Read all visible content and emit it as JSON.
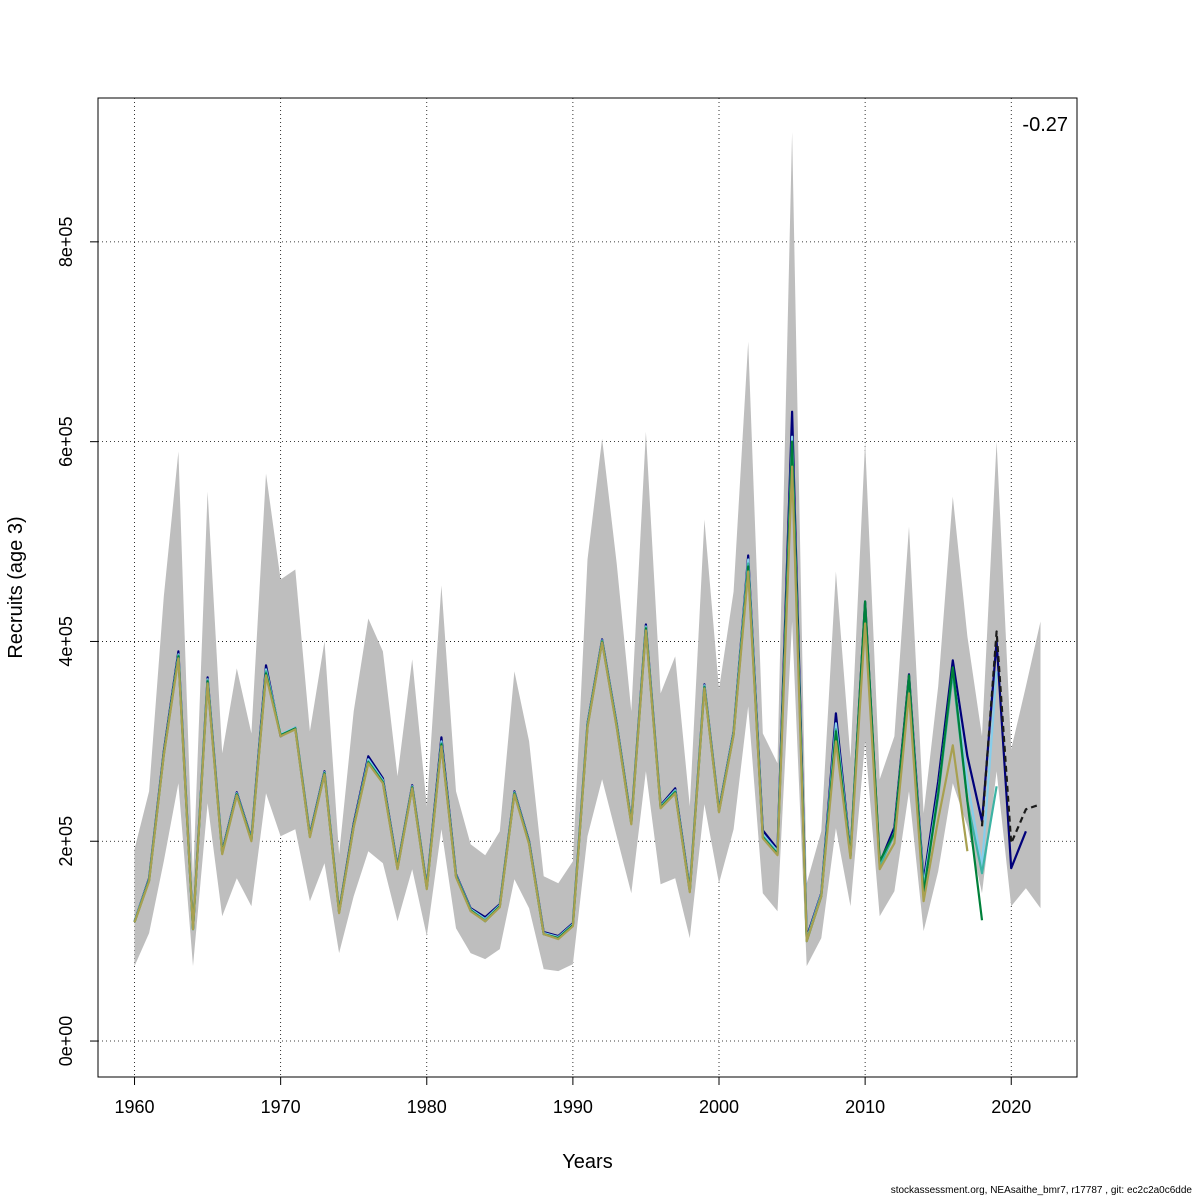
{
  "chart_data": {
    "type": "line",
    "xlabel": "Years",
    "ylabel": "Recruits (age 3)",
    "xlim": [
      1957.5,
      2024.5
    ],
    "ylim": [
      -36000,
      944000
    ],
    "xticks": [
      1960,
      1970,
      1980,
      1990,
      2000,
      2010,
      2020
    ],
    "xtick_labels": [
      "1960",
      "1970",
      "1980",
      "1990",
      "2000",
      "2010",
      "2020"
    ],
    "yticks": [
      0,
      200000,
      400000,
      600000,
      800000
    ],
    "ytick_labels": [
      "0e+00",
      "2e+05",
      "4e+05",
      "6e+05",
      "8e+05"
    ],
    "grid": true,
    "annotation": "-0.27",
    "confidence_band": {
      "years": [
        1960,
        1961,
        1962,
        1963,
        1964,
        1965,
        1966,
        1967,
        1968,
        1969,
        1970,
        1971,
        1972,
        1973,
        1974,
        1975,
        1976,
        1977,
        1978,
        1979,
        1980,
        1981,
        1982,
        1983,
        1984,
        1985,
        1986,
        1987,
        1988,
        1989,
        1990,
        1991,
        1992,
        1993,
        1994,
        1995,
        1996,
        1997,
        1998,
        1999,
        2000,
        2001,
        2002,
        2003,
        2004,
        2005,
        2006,
        2007,
        2008,
        2009,
        2010,
        2011,
        2012,
        2013,
        2014,
        2015,
        2016,
        2017,
        2018,
        2019,
        2020,
        2021,
        2022
      ],
      "lower": [
        75000,
        108000,
        180000,
        258000,
        75000,
        238000,
        125000,
        163000,
        135000,
        248000,
        205000,
        212000,
        140000,
        178000,
        88000,
        145000,
        190000,
        178000,
        120000,
        172000,
        105000,
        212000,
        113000,
        88000,
        82000,
        92000,
        162000,
        133000,
        72000,
        70000,
        77000,
        205000,
        262000,
        205000,
        148000,
        270000,
        157000,
        163000,
        103000,
        237000,
        158000,
        212000,
        335000,
        148000,
        130000,
        420000,
        75000,
        103000,
        213000,
        135000,
        300000,
        125000,
        150000,
        250000,
        110000,
        170000,
        258000,
        215000,
        148000,
        270000,
        135000,
        153000,
        133000
      ],
      "upper": [
        192000,
        250000,
        445000,
        590000,
        160000,
        550000,
        288000,
        373000,
        308000,
        568000,
        462000,
        472000,
        310000,
        400000,
        187000,
        330000,
        423000,
        390000,
        265000,
        382000,
        235000,
        456000,
        250000,
        197000,
        186000,
        210000,
        370000,
        300000,
        165000,
        158000,
        180000,
        482000,
        603000,
        478000,
        330000,
        610000,
        348000,
        385000,
        235000,
        522000,
        352000,
        450000,
        700000,
        308000,
        278000,
        910000,
        158000,
        210000,
        470000,
        283000,
        600000,
        262000,
        305000,
        515000,
        228000,
        355000,
        545000,
        405000,
        305000,
        600000,
        292000,
        355000,
        420000
      ]
    },
    "series": [
      {
        "color": "#00007a",
        "x": [
          1960,
          1961,
          1962,
          1963,
          1964,
          1965,
          1966,
          1967,
          1968,
          1969,
          1970,
          1971,
          1972,
          1973,
          1974,
          1975,
          1976,
          1977,
          1978,
          1979,
          1980,
          1981,
          1982,
          1983,
          1984,
          1985,
          1986,
          1987,
          1988,
          1989,
          1990,
          1991,
          1992,
          1993,
          1994,
          1995,
          1996,
          1997,
          1998,
          1999,
          2000,
          2001,
          2002,
          2003,
          2004,
          2005,
          2006,
          2007,
          2008,
          2009,
          2010,
          2011,
          2012,
          2013,
          2014,
          2015,
          2016,
          2017,
          2018,
          2019,
          2020,
          2021
        ],
        "y": [
          120000,
          163000,
          290000,
          390000,
          113000,
          364000,
          190000,
          249000,
          203000,
          376000,
          305000,
          314000,
          207000,
          270000,
          130000,
          218000,
          285000,
          263000,
          175000,
          256000,
          155000,
          304000,
          167000,
          133000,
          124000,
          137000,
          250000,
          200000,
          109000,
          105000,
          118000,
          318000,
          402000,
          318000,
          220000,
          417000,
          236000,
          253000,
          152000,
          357000,
          232000,
          310000,
          486000,
          211000,
          192000,
          630000,
          104000,
          148000,
          328000,
          188000,
          440000,
          178000,
          214000,
          367000,
          160000,
          260000,
          381000,
          285000,
          220000,
          400000,
          173000,
          210000
        ]
      },
      {
        "color": "#87ceeb",
        "x": [
          1960,
          1961,
          1962,
          1963,
          1964,
          1965,
          1966,
          1967,
          1968,
          1969,
          1970,
          1971,
          1972,
          1973,
          1974,
          1975,
          1976,
          1977,
          1978,
          1979,
          1980,
          1981,
          1982,
          1983,
          1984,
          1985,
          1986,
          1987,
          1988,
          1989,
          1990,
          1991,
          1992,
          1993,
          1994,
          1995,
          1996,
          1997,
          1998,
          1999,
          2000,
          2001,
          2002,
          2003,
          2004,
          2005,
          2006,
          2007,
          2008,
          2009,
          2010,
          2011,
          2012,
          2013,
          2014,
          2015,
          2016,
          2017,
          2018,
          2019
        ],
        "y": [
          120000,
          162000,
          288000,
          387000,
          112000,
          362000,
          189000,
          248000,
          202000,
          372000,
          307000,
          314000,
          206000,
          269000,
          129000,
          216000,
          282000,
          261000,
          174000,
          255000,
          154000,
          300000,
          166000,
          132000,
          122000,
          136000,
          249000,
          199000,
          108000,
          104000,
          117000,
          317000,
          401000,
          317000,
          219000,
          415000,
          235000,
          251000,
          151000,
          356000,
          231000,
          309000,
          482000,
          207000,
          190000,
          605000,
          102000,
          147000,
          318000,
          187000,
          436000,
          176000,
          209000,
          364000,
          155000,
          250000,
          370000,
          260000,
          175000,
          370000
        ]
      },
      {
        "color": "#3cb3a4",
        "x": [
          1960,
          1961,
          1962,
          1963,
          1964,
          1965,
          1966,
          1967,
          1968,
          1969,
          1970,
          1971,
          1972,
          1973,
          1974,
          1975,
          1976,
          1977,
          1978,
          1979,
          1980,
          1981,
          1982,
          1983,
          1984,
          1985,
          1986,
          1987,
          1988,
          1989,
          1990,
          1991,
          1992,
          1993,
          1994,
          1995,
          1996,
          1997,
          1998,
          1999,
          2000,
          2001,
          2002,
          2003,
          2004,
          2005,
          2006,
          2007,
          2008,
          2009,
          2010,
          2011,
          2012,
          2013,
          2014,
          2015,
          2016,
          2017,
          2018,
          2019
        ],
        "y": [
          119000,
          161000,
          287000,
          386000,
          112000,
          361000,
          188000,
          247000,
          201000,
          370000,
          306000,
          313000,
          205000,
          268000,
          129000,
          215000,
          280000,
          260000,
          173000,
          254000,
          153000,
          298000,
          165000,
          131000,
          121000,
          135000,
          248000,
          198000,
          107000,
          103000,
          116000,
          316000,
          400000,
          316000,
          218000,
          414000,
          234000,
          250000,
          150000,
          355000,
          230000,
          308000,
          478000,
          205000,
          188000,
          590000,
          101000,
          146000,
          312000,
          186000,
          432000,
          175000,
          207000,
          362000,
          150000,
          245000,
          368000,
          240000,
          168000,
          255000
        ]
      },
      {
        "color": "#00803a",
        "x": [
          1960,
          1961,
          1962,
          1963,
          1964,
          1965,
          1966,
          1967,
          1968,
          1969,
          1970,
          1971,
          1972,
          1973,
          1974,
          1975,
          1976,
          1977,
          1978,
          1979,
          1980,
          1981,
          1982,
          1983,
          1984,
          1985,
          1986,
          1987,
          1988,
          1989,
          1990,
          1991,
          1992,
          1993,
          1994,
          1995,
          1996,
          1997,
          1998,
          1999,
          2000,
          2001,
          2002,
          2003,
          2004,
          2005,
          2006,
          2007,
          2008,
          2009,
          2010,
          2011,
          2012,
          2013,
          2014,
          2015,
          2016,
          2017,
          2018
        ],
        "y": [
          119000,
          161000,
          287000,
          385000,
          112000,
          360000,
          188000,
          247000,
          201000,
          368000,
          306000,
          313000,
          205000,
          268000,
          129000,
          215000,
          279000,
          259000,
          173000,
          254000,
          153000,
          297000,
          165000,
          131000,
          120000,
          135000,
          248000,
          198000,
          107000,
          103000,
          116000,
          315000,
          400000,
          315000,
          218000,
          413000,
          234000,
          249000,
          150000,
          354000,
          230000,
          307000,
          475000,
          204000,
          187000,
          600000,
          100000,
          145000,
          310000,
          185000,
          440000,
          180000,
          208000,
          366000,
          148000,
          248000,
          374000,
          240000,
          121000
        ]
      },
      {
        "color": "#a8a050",
        "x": [
          1960,
          1961,
          1962,
          1963,
          1964,
          1965,
          1966,
          1967,
          1968,
          1969,
          1970,
          1971,
          1972,
          1973,
          1974,
          1975,
          1976,
          1977,
          1978,
          1979,
          1980,
          1981,
          1982,
          1983,
          1984,
          1985,
          1986,
          1987,
          1988,
          1989,
          1990,
          1991,
          1992,
          1993,
          1994,
          1995,
          1996,
          1997,
          1998,
          1999,
          2000,
          2001,
          2002,
          2003,
          2004,
          2005,
          2006,
          2007,
          2008,
          2009,
          2010,
          2011,
          2012,
          2013,
          2014,
          2015,
          2016,
          2017
        ],
        "y": [
          119000,
          160000,
          286000,
          383000,
          112000,
          358000,
          187000,
          246000,
          200000,
          366000,
          305000,
          312000,
          204000,
          267000,
          128000,
          214000,
          278000,
          258000,
          172000,
          253000,
          152000,
          295000,
          164000,
          130000,
          120000,
          134000,
          247000,
          197000,
          107000,
          102000,
          115000,
          314000,
          399000,
          314000,
          217000,
          411000,
          233000,
          248000,
          149000,
          353000,
          229000,
          306000,
          470000,
          203000,
          186000,
          575000,
          100000,
          145000,
          300000,
          183000,
          418000,
          172000,
          198000,
          348000,
          140000,
          222000,
          296000,
          190000
        ]
      },
      {
        "color": "#1a1a1a",
        "dashed": true,
        "x": [
          2018,
          2019,
          2020,
          2021,
          2022
        ],
        "y": [
          215000,
          410000,
          198000,
          232000,
          237000
        ]
      }
    ]
  },
  "footer": "stockassessment.org, NEAsaithe_bmr7, r17787 , git: ec2c2a0c6dde"
}
